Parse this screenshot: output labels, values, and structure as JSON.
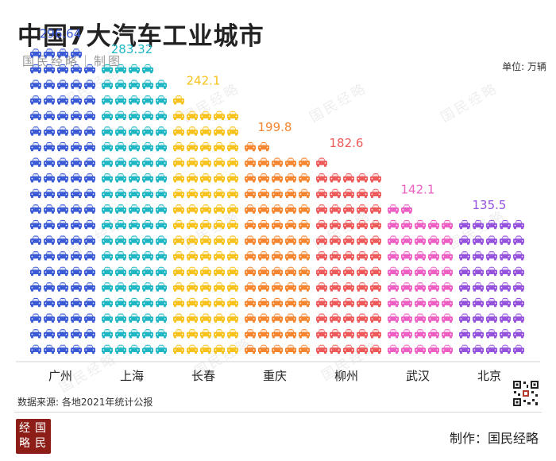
{
  "header": {
    "title": "中国7大汽车工业城市",
    "brand_sub": "国民经略｜制图",
    "unit": "单位: 万辆"
  },
  "watermark_text": "国民经略",
  "chart_data": {
    "type": "bar",
    "title": "中国7大汽车工业城市",
    "ylabel": "单位: 万辆",
    "categories": [
      "广州",
      "上海",
      "长春",
      "重庆",
      "柳州",
      "武汉",
      "北京"
    ],
    "values": [
      296.64,
      283.32,
      242.1,
      199.8,
      182.6,
      142.1,
      135.5
    ],
    "value_labels": [
      "296.64",
      "283.32",
      "242.1",
      "199.8",
      "182.6",
      "142.1",
      "135.5"
    ],
    "colors": [
      "#3b5bd6",
      "#1fb7c4",
      "#f7c21b",
      "#f5862f",
      "#ee5a5a",
      "#ee5fc4",
      "#9552dd"
    ],
    "units_per_icon": 3
  },
  "footer": {
    "source": "数据来源: 各地2021年统计公报",
    "credit": "制作：国民经略",
    "logo_chars": [
      "经",
      "国",
      "略",
      "民"
    ]
  }
}
